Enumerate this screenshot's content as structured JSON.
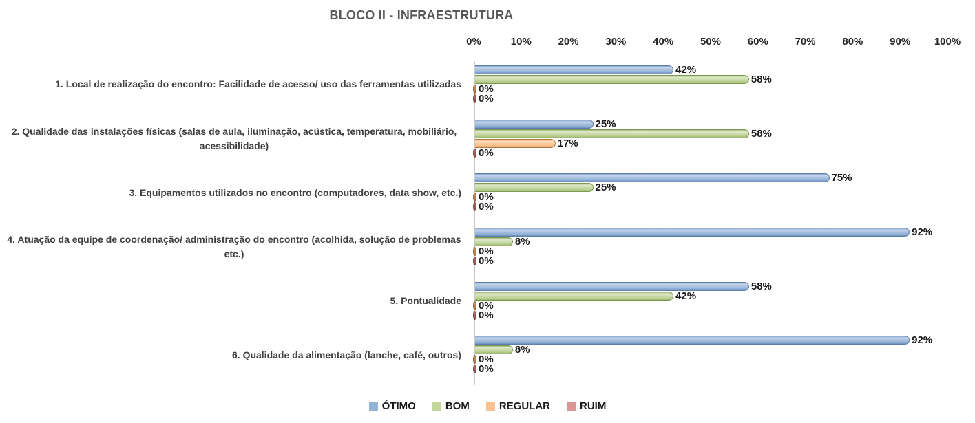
{
  "chart_data": {
    "type": "bar",
    "orientation": "horizontal",
    "title": "BLOCO II - INFRAESTRUTURA",
    "categories": [
      "1. Local de realização do encontro: Facilidade de acesso/ uso das ferramentas utilizadas",
      "2. Qualidade das instalações físicas (salas de aula, iluminação, acústica, temperatura, mobiliário, acessibilidade)",
      "3. Equipamentos utilizados no encontro (computadores, data show, etc.)",
      "4. Atuação da equipe de coordenação/ administração do encontro (acolhida, solução de problemas etc.)",
      "5. Pontualidade",
      "6. Qualidade da alimentação (lanche, café, outros)"
    ],
    "series": [
      {
        "name": "ÓTIMO",
        "key": "otimo",
        "color": "#95B3D7",
        "values": [
          42,
          25,
          75,
          92,
          58,
          92
        ]
      },
      {
        "name": "BOM",
        "key": "bom",
        "color": "#C3D69B",
        "values": [
          58,
          58,
          25,
          8,
          42,
          8
        ]
      },
      {
        "name": "REGULAR",
        "key": "regular",
        "color": "#FAC090",
        "values": [
          0,
          17,
          0,
          0,
          0,
          0
        ]
      },
      {
        "name": "RUIM",
        "key": "ruim",
        "color": "#D99694",
        "values": [
          0,
          0,
          0,
          0,
          0,
          0
        ]
      }
    ],
    "data_label_suffix": "%",
    "value_axis": {
      "position": "top",
      "min": 0,
      "max": 100,
      "ticks": [
        "0%",
        "10%",
        "20%",
        "30%",
        "40%",
        "50%",
        "60%",
        "70%",
        "80%",
        "90%",
        "100%"
      ]
    },
    "gridlines": false,
    "legend_position": "bottom",
    "styles": {
      "title_color": "#595959",
      "category_label_color": "#404040",
      "tick_label_color": "#262626",
      "axis_line_color": "#C9C9C9"
    }
  }
}
